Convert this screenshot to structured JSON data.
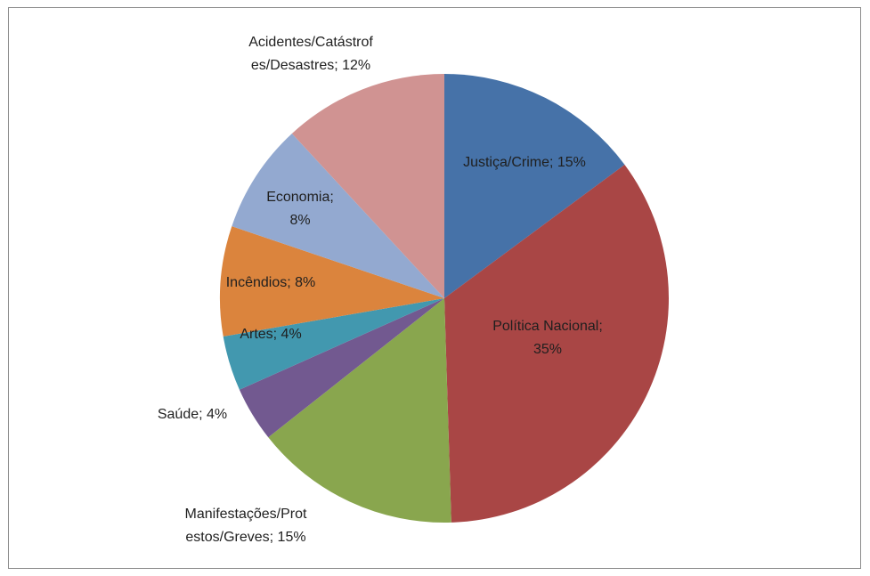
{
  "chart_data": {
    "type": "pie",
    "title": "",
    "start_angle_deg": 0,
    "direction": "clockwise",
    "legend": "none",
    "slices": [
      {
        "name": "Justiça/Crime",
        "value": 15,
        "label_lines": [
          "Justiça/Crime; 15%"
        ],
        "color": "#4672A8"
      },
      {
        "name": "Política Nacional",
        "value": 35,
        "label_lines": [
          "Política Nacional;",
          "35%"
        ],
        "color": "#A94645"
      },
      {
        "name": "Manifestações/Protestos/Greves",
        "value": 15,
        "label_lines": [
          "Manifestações/Prot",
          "estos/Greves; 15%"
        ],
        "color": "#89A64E"
      },
      {
        "name": "Saúde",
        "value": 4,
        "label_lines": [
          "Saúde; 4%"
        ],
        "color": "#725990"
      },
      {
        "name": "Artes",
        "value": 4,
        "label_lines": [
          "Artes; 4%"
        ],
        "color": "#4298AF"
      },
      {
        "name": "Incêndios",
        "value": 8,
        "label_lines": [
          "Incêndios; 8%"
        ],
        "color": "#DB843D"
      },
      {
        "name": "Economia",
        "value": 8,
        "label_lines": [
          "Economia;",
          "8%"
        ],
        "color": "#93A9D0"
      },
      {
        "name": "Acidentes/Catástrofes/Desastres",
        "value": 12,
        "label_lines": [
          "Acidentes/Catástrof",
          "es/Desastres; 12%"
        ],
        "color": "#D09392"
      }
    ]
  }
}
